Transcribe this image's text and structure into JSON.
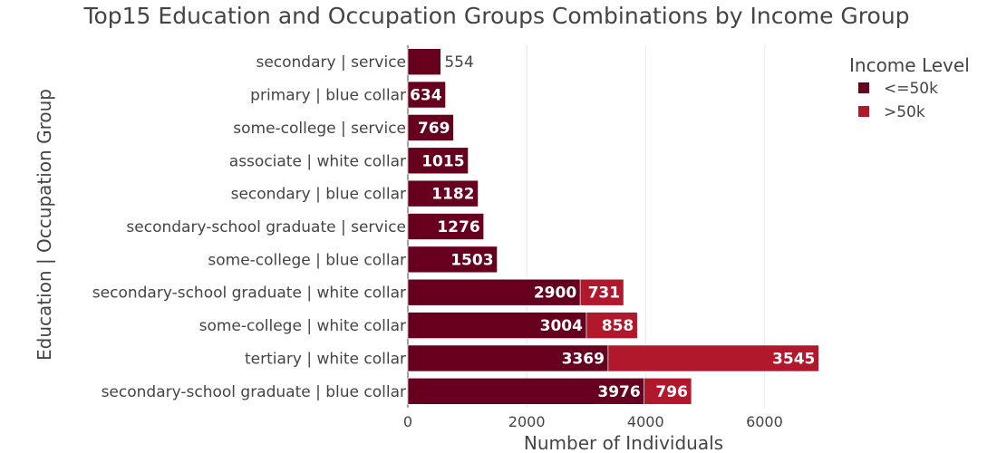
{
  "chart_data": {
    "type": "bar",
    "orientation": "horizontal",
    "barmode": "stack",
    "title": "Top15 Education and Occupation Groups Combinations by Income Group",
    "xlabel": "Number of Individuals",
    "ylabel": "Education | Occupation Group",
    "xlim": [
      0,
      7000
    ],
    "xticks": [
      0,
      2000,
      4000,
      6000
    ],
    "grid": true,
    "legend": {
      "title": "Income Level",
      "position": "top-right"
    },
    "categories": [
      "secondary | service",
      "primary | blue collar",
      "some-college | service",
      "associate | white collar",
      "secondary | blue collar",
      "secondary-school graduate | service",
      "some-college | blue collar",
      "secondary-school graduate | white collar",
      "some-college | white collar",
      "tertiary | white collar",
      "secondary-school graduate | blue collar"
    ],
    "series": [
      {
        "name": "<=50k",
        "color": "#67001f",
        "values": [
          554,
          634,
          769,
          1015,
          1182,
          1276,
          1503,
          2900,
          3004,
          3369,
          3976
        ]
      },
      {
        "name": ">50k",
        "color": "#b2182b",
        "values": [
          null,
          null,
          null,
          null,
          null,
          null,
          null,
          731,
          858,
          3545,
          796
        ]
      }
    ]
  }
}
